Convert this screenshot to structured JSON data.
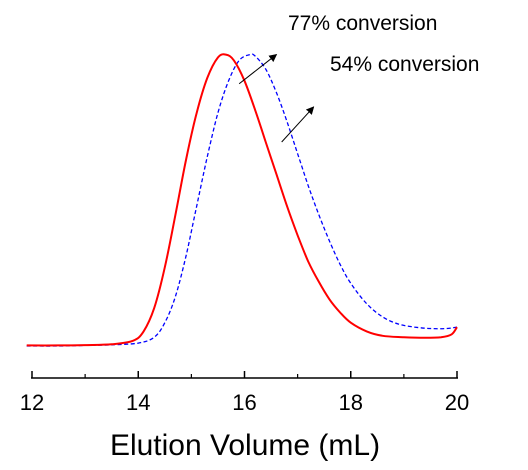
{
  "chart_data": {
    "type": "line",
    "xlabel": "Elution Volume (mL)",
    "ylabel": "",
    "title": "",
    "xlim": [
      12,
      20
    ],
    "ylim": [
      0,
      1.05
    ],
    "x_ticks": [
      12,
      14,
      16,
      18,
      20
    ],
    "x_tick_labels": [
      "12",
      "14",
      "16",
      "18",
      "20"
    ],
    "y_axis_visible": false,
    "grid": false,
    "legend": "none",
    "annotations": [
      {
        "text": "77% conversion",
        "series": "red-solid",
        "arrow_from": [
          15.9,
          0.9
        ],
        "arrow_to": [
          16.6,
          1.0
        ]
      },
      {
        "text": "54% conversion",
        "series": "blue-dashed",
        "arrow_from": [
          16.7,
          0.7
        ],
        "arrow_to": [
          17.3,
          0.82
        ]
      }
    ],
    "series": [
      {
        "color": "#ff0000",
        "style": "solid",
        "x": [
          11.9,
          12.5,
          13.0,
          13.5,
          13.9,
          14.1,
          14.3,
          14.5,
          14.7,
          14.9,
          15.1,
          15.3,
          15.5,
          15.65,
          15.8,
          16.0,
          16.2,
          16.4,
          16.6,
          16.8,
          17.0,
          17.2,
          17.4,
          17.6,
          17.8,
          18.0,
          18.3,
          18.6,
          19.0,
          19.4,
          19.7,
          19.9,
          20.0
        ],
        "y": [
          0.002,
          0.002,
          0.003,
          0.006,
          0.018,
          0.05,
          0.13,
          0.27,
          0.45,
          0.64,
          0.8,
          0.92,
          0.99,
          1.0,
          0.98,
          0.91,
          0.81,
          0.7,
          0.59,
          0.48,
          0.38,
          0.29,
          0.22,
          0.16,
          0.115,
          0.08,
          0.05,
          0.035,
          0.03,
          0.028,
          0.03,
          0.04,
          0.065
        ]
      },
      {
        "color": "#0000ff",
        "style": "dashed",
        "x": [
          11.9,
          12.5,
          13.0,
          13.5,
          14.0,
          14.3,
          14.5,
          14.7,
          14.9,
          15.1,
          15.3,
          15.5,
          15.7,
          15.9,
          16.1,
          16.2,
          16.4,
          16.6,
          16.8,
          17.0,
          17.2,
          17.4,
          17.6,
          17.8,
          18.0,
          18.3,
          18.6,
          18.9,
          19.2,
          19.5,
          19.8,
          20.0
        ],
        "y": [
          0.0,
          0.0,
          0.002,
          0.004,
          0.01,
          0.03,
          0.08,
          0.17,
          0.31,
          0.48,
          0.65,
          0.8,
          0.91,
          0.98,
          1.0,
          0.995,
          0.95,
          0.87,
          0.77,
          0.66,
          0.55,
          0.45,
          0.36,
          0.28,
          0.215,
          0.145,
          0.1,
          0.075,
          0.065,
          0.06,
          0.06,
          0.065
        ]
      }
    ]
  }
}
